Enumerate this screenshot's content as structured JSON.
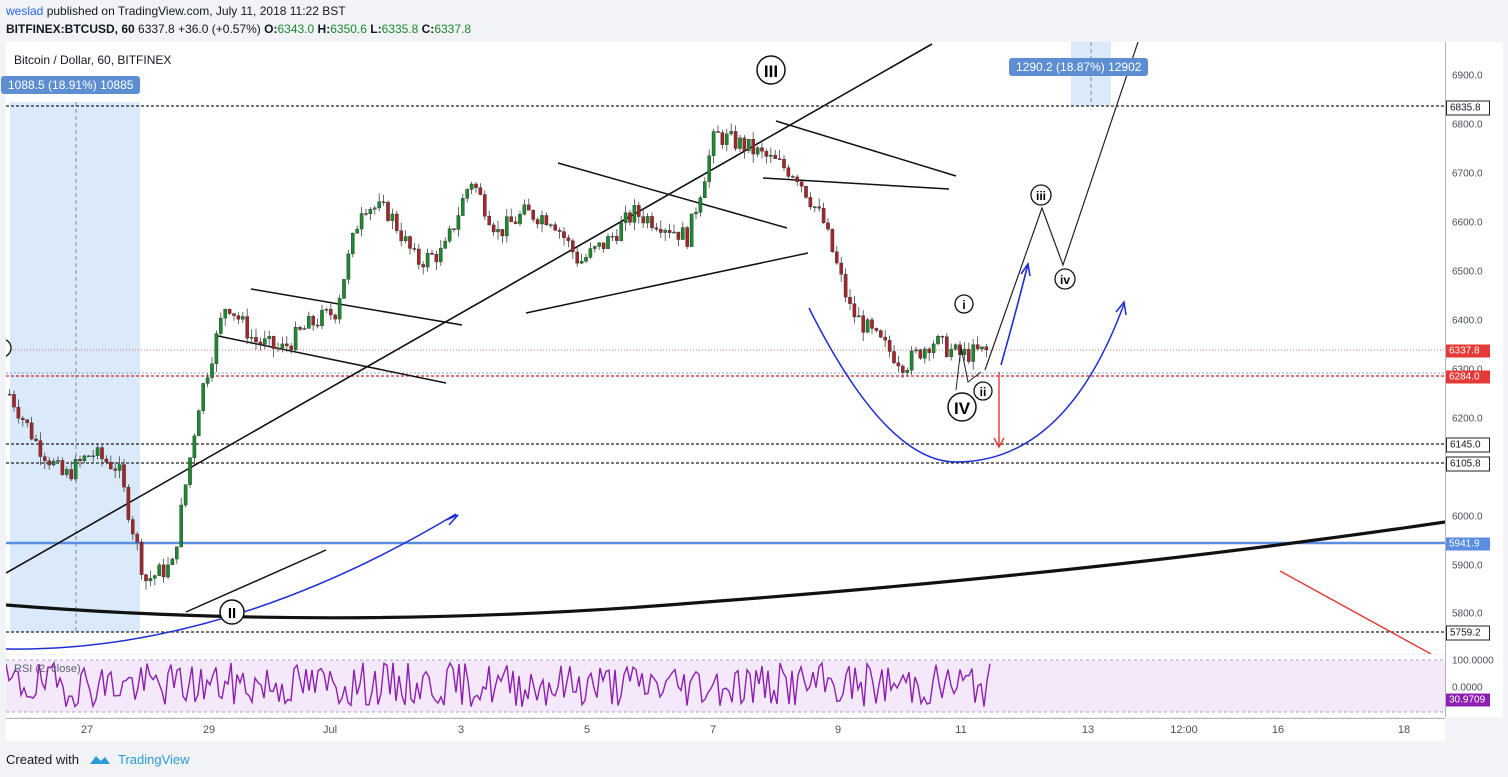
{
  "header": {
    "user": "weslad",
    "published": "published on TradingView.com, July 11, 2018 11:22 BST",
    "symbol": "BITFINEX:BTCUSD, 60",
    "last": "6337.8",
    "change": "+36.0 (+0.57%)",
    "o_label": "O:",
    "o": "6343.0",
    "h_label": "H:",
    "h": "6350.6",
    "l_label": "L:",
    "l": "6335.8",
    "c_label": "C:",
    "c": "6337.8"
  },
  "legend": "Bitcoin / Dollar, 60, BITFINEX",
  "rsi_label": "RSI (2, close)",
  "measure_left": "1088.5 (18.91%) 10885",
  "measure_right": "1290.2 (18.87%) 12902",
  "wave_labels": {
    "II": "II",
    "III": "III",
    "IV": "IV",
    "i": "i",
    "ii": "ii",
    "iii": "iii",
    "iv": "iv"
  },
  "footer": {
    "created_with": "Created with",
    "brand": "TradingView"
  },
  "colors": {
    "up": "#1b8a2e",
    "down": "#a3262a",
    "price_tag": "#e53935",
    "blue_level": "#5b8ee0",
    "measure_bg": "#dbeafb",
    "rsi_bg": "#f4e8fb",
    "rsi_line": "#8e1fb0"
  },
  "chart_data": {
    "type": "candlestick",
    "title": "Bitcoin / Dollar, 60, BITFINEX",
    "ylim": [
      5720,
      6960
    ],
    "y_ticks": [
      "6900.0",
      "6800.0",
      "6700.0",
      "6600.0",
      "6500.0",
      "6400.0",
      "6300.0",
      "6200.0",
      "6100.0",
      "6000.0",
      "5900.0",
      "5800.0"
    ],
    "x_ticks": [
      "27",
      "29",
      "Jul",
      "3",
      "5",
      "7",
      "9",
      "11",
      "13",
      "12:00",
      "16",
      "18"
    ],
    "price_levels": [
      {
        "value": 6835.8,
        "label": "6835.8",
        "style": "black-dashed"
      },
      {
        "value": 6145.0,
        "label": "6145.0",
        "style": "black-dashed"
      },
      {
        "value": 6105.8,
        "label": "6105.8",
        "style": "black-dashed"
      },
      {
        "value": 5941.9,
        "label": "5941.9",
        "style": "blue-solid"
      },
      {
        "value": 5759.2,
        "label": "5759.2",
        "style": "black-dashed"
      },
      {
        "value": 6284.0,
        "label": "6284.0",
        "style": "red-dashed"
      },
      {
        "value": 6337.8,
        "label": "6337.8",
        "style": "last-price"
      }
    ],
    "rsi": {
      "label": "RSI (2, close)",
      "scale": [
        "100.0000",
        "0.0000"
      ],
      "current": "30.9709"
    },
    "series": [
      {
        "name": "BTCUSD",
        "key_closes": [
          6250,
          6150,
          6080,
          6130,
          6100,
          5870,
          5900,
          6240,
          6440,
          6360,
          6340,
          6390,
          6420,
          6640,
          6620,
          6520,
          6540,
          6690,
          6580,
          6620,
          6610,
          6520,
          6560,
          6620,
          6600,
          6570,
          6780,
          6760,
          6730,
          6700,
          6600,
          6420,
          6360,
          6310,
          6360,
          6330,
          6337.8
        ]
      }
    ]
  }
}
